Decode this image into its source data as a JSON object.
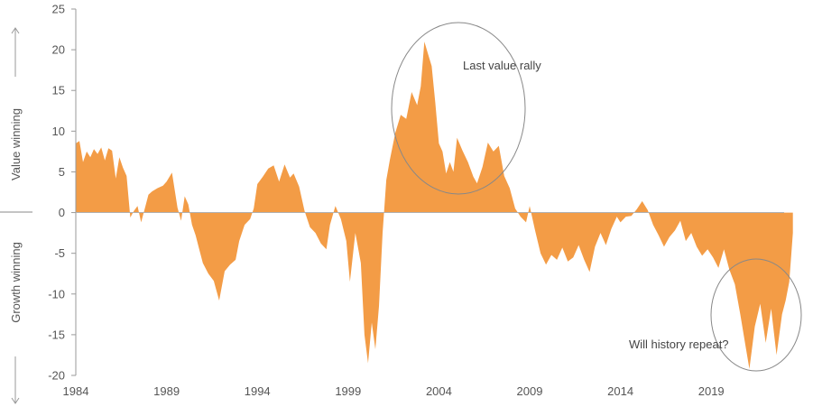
{
  "chart_data": {
    "type": "area",
    "title": "",
    "xlabel": "",
    "ylabel": "",
    "xlim": [
      1984,
      2023.8
    ],
    "ylim": [
      -20,
      25
    ],
    "grid": false,
    "fill_color": "#f39c46",
    "x_ticks": [
      "1984",
      "1989",
      "1994",
      "1999",
      "2004",
      "2009",
      "2014",
      "2019"
    ],
    "y_ticks": [
      "25",
      "20",
      "15",
      "10",
      "5",
      "0",
      "-5",
      "-10",
      "-15",
      "-20"
    ],
    "side_labels": {
      "upper": "Value winning",
      "lower": "Growth winning"
    },
    "annotations": [
      {
        "text": "Last value rally"
      },
      {
        "text": "Will history repeat?"
      }
    ],
    "series": [
      {
        "x": [
          1984.0,
          1984.2,
          1984.4,
          1984.6,
          1984.8,
          1985.0,
          1985.2,
          1985.4,
          1985.6,
          1985.8,
          1986.0,
          1986.2,
          1986.4,
          1986.6,
          1986.8,
          1987.0,
          1987.2,
          1987.4,
          1987.6,
          1987.8,
          1988.0,
          1988.2,
          1988.5,
          1988.8,
          1989.0,
          1989.3,
          1989.6,
          1989.8,
          1990.0,
          1990.2,
          1990.4,
          1990.6,
          1990.8,
          1991.0,
          1991.3,
          1991.6,
          1991.9,
          1992.2,
          1992.5,
          1992.8,
          1993.0,
          1993.3,
          1993.6,
          1993.8,
          1994.0,
          1994.3,
          1994.6,
          1994.9,
          1995.2,
          1995.5,
          1995.8,
          1996.0,
          1996.3,
          1996.6,
          1996.9,
          1997.2,
          1997.5,
          1997.8,
          1998.0,
          1998.3,
          1998.6,
          1998.9,
          1999.1,
          1999.4,
          1999.7,
          1999.9,
          2000.1,
          2000.3,
          2000.5,
          2000.7,
          2000.9,
          2001.1,
          2001.3,
          2001.6,
          2001.9,
          2002.2,
          2002.5,
          2002.8,
          2003.0,
          2003.2,
          2003.4,
          2003.6,
          2003.8,
          2004.0,
          2004.2,
          2004.4,
          2004.6,
          2004.8,
          2005.0,
          2005.3,
          2005.6,
          2005.9,
          2006.1,
          2006.4,
          2006.7,
          2007.0,
          2007.3,
          2007.6,
          2007.9,
          2008.2,
          2008.5,
          2008.8,
          2009.0,
          2009.3,
          2009.6,
          2009.9,
          2010.2,
          2010.5,
          2010.8,
          2011.1,
          2011.4,
          2011.7,
          2012.0,
          2012.3,
          2012.6,
          2012.9,
          2013.2,
          2013.5,
          2013.8,
          2014.0,
          2014.3,
          2014.6,
          2014.9,
          2015.2,
          2015.5,
          2015.8,
          2016.1,
          2016.4,
          2016.7,
          2017.0,
          2017.3,
          2017.6,
          2017.9,
          2018.2,
          2018.5,
          2018.8,
          2019.1,
          2019.4,
          2019.7,
          2020.0,
          2020.3,
          2020.6,
          2020.9,
          2021.1,
          2021.4,
          2021.7,
          2022.0,
          2022.3,
          2022.6,
          2022.9,
          2023.1,
          2023.3,
          2023.5
        ],
        "y": [
          8.5,
          8.8,
          6.2,
          7.5,
          6.8,
          7.8,
          7.2,
          8.0,
          6.4,
          7.9,
          7.6,
          4.2,
          6.8,
          5.5,
          4.5,
          -0.6,
          0.2,
          0.8,
          -1.2,
          0.5,
          2.2,
          2.6,
          3.0,
          3.3,
          3.8,
          4.9,
          0.6,
          -1.0,
          2.0,
          1.0,
          -1.5,
          -2.8,
          -4.5,
          -6.2,
          -7.5,
          -8.4,
          -10.8,
          -7.2,
          -6.4,
          -5.8,
          -3.5,
          -1.5,
          -0.8,
          0.5,
          3.5,
          4.4,
          5.4,
          5.8,
          3.8,
          5.9,
          4.3,
          4.8,
          3.2,
          0.2,
          -1.8,
          -2.5,
          -3.8,
          -4.5,
          -1.5,
          0.8,
          -0.8,
          -3.5,
          -8.5,
          -2.5,
          -6.2,
          -15.0,
          -18.5,
          -13.5,
          -16.8,
          -11.5,
          -2.5,
          4.0,
          6.5,
          9.8,
          12.0,
          11.5,
          14.8,
          13.2,
          15.5,
          21.0,
          19.5,
          18.0,
          13.5,
          8.5,
          7.5,
          4.8,
          6.2,
          5.0,
          9.2,
          7.6,
          6.2,
          4.4,
          3.6,
          5.6,
          8.6,
          7.5,
          8.2,
          4.5,
          3.0,
          0.5,
          -0.5,
          -1.2,
          0.8,
          -2.2,
          -5.0,
          -6.4,
          -5.2,
          -5.8,
          -4.3,
          -6.0,
          -5.5,
          -4.0,
          -5.8,
          -7.3,
          -4.2,
          -2.5,
          -4.0,
          -2.0,
          -0.5,
          -1.2,
          -0.5,
          -0.4,
          0.4,
          1.4,
          0.3,
          -1.5,
          -2.8,
          -4.2,
          -3.0,
          -2.2,
          -1.0,
          -3.5,
          -2.5,
          -4.2,
          -5.3,
          -4.5,
          -5.5,
          -6.8,
          -4.5,
          -7.0,
          -8.8,
          -12.5,
          -16.5,
          -19.2,
          -14.0,
          -11.2,
          -16.0,
          -11.8,
          -17.5,
          -12.5,
          -10.8,
          -8.5,
          -2.5
        ]
      }
    ]
  }
}
